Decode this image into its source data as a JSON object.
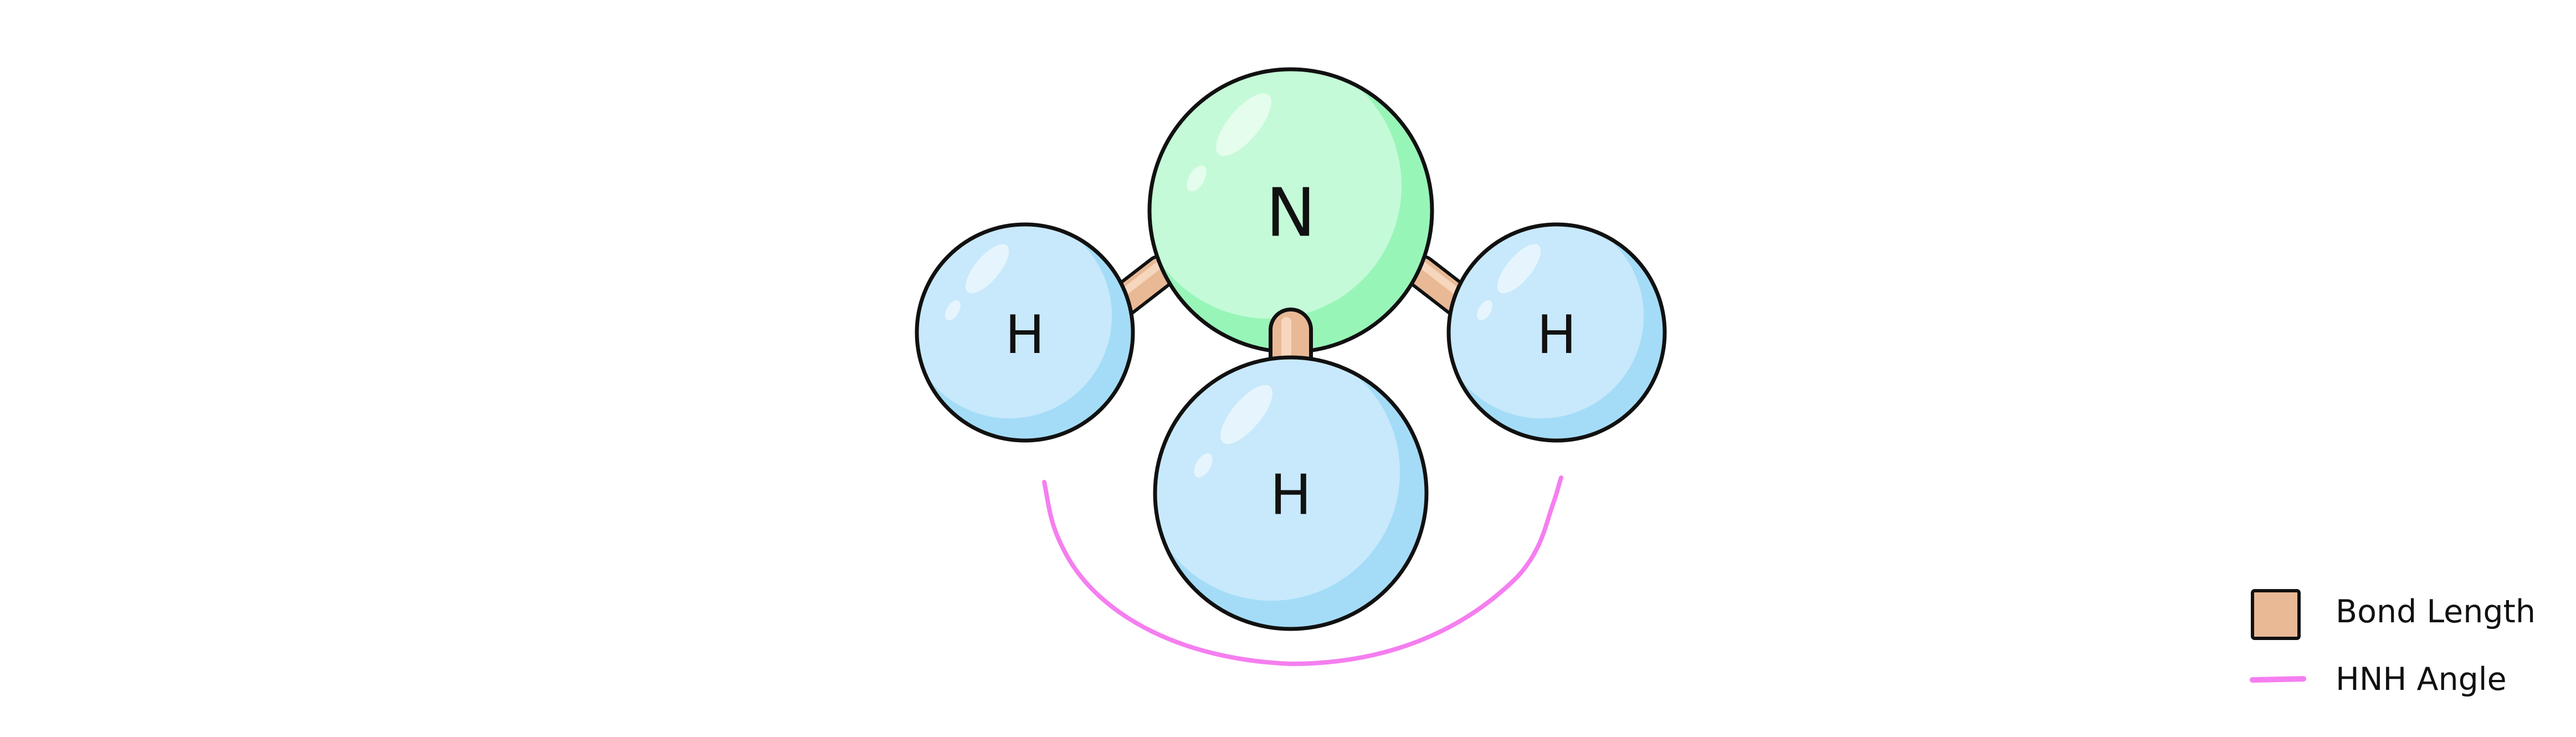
{
  "molecule": {
    "atoms": [
      {
        "id": "n-central",
        "label": "N",
        "element": "nitrogen"
      },
      {
        "id": "h-left",
        "label": "H",
        "element": "hydrogen"
      },
      {
        "id": "h-front",
        "label": "H",
        "element": "hydrogen"
      },
      {
        "id": "h-right",
        "label": "H",
        "element": "hydrogen"
      }
    ],
    "bonds": [
      "N-H left",
      "N-H front",
      "N-H right"
    ]
  },
  "legend": {
    "bond_length_label": "Bond Length",
    "hnh_angle_label": "HNH Angle"
  },
  "colors": {
    "nitrogen_fill": "#c4fad8",
    "nitrogen_shade": "#98f5b8",
    "hydrogen_fill": "#c8e9fb",
    "hydrogen_shade": "#a4dcf8",
    "bond_fill": "#e9b996",
    "bond_shade": "#d49a72",
    "angle_arc": "#f57ef0",
    "outline": "#111111"
  }
}
